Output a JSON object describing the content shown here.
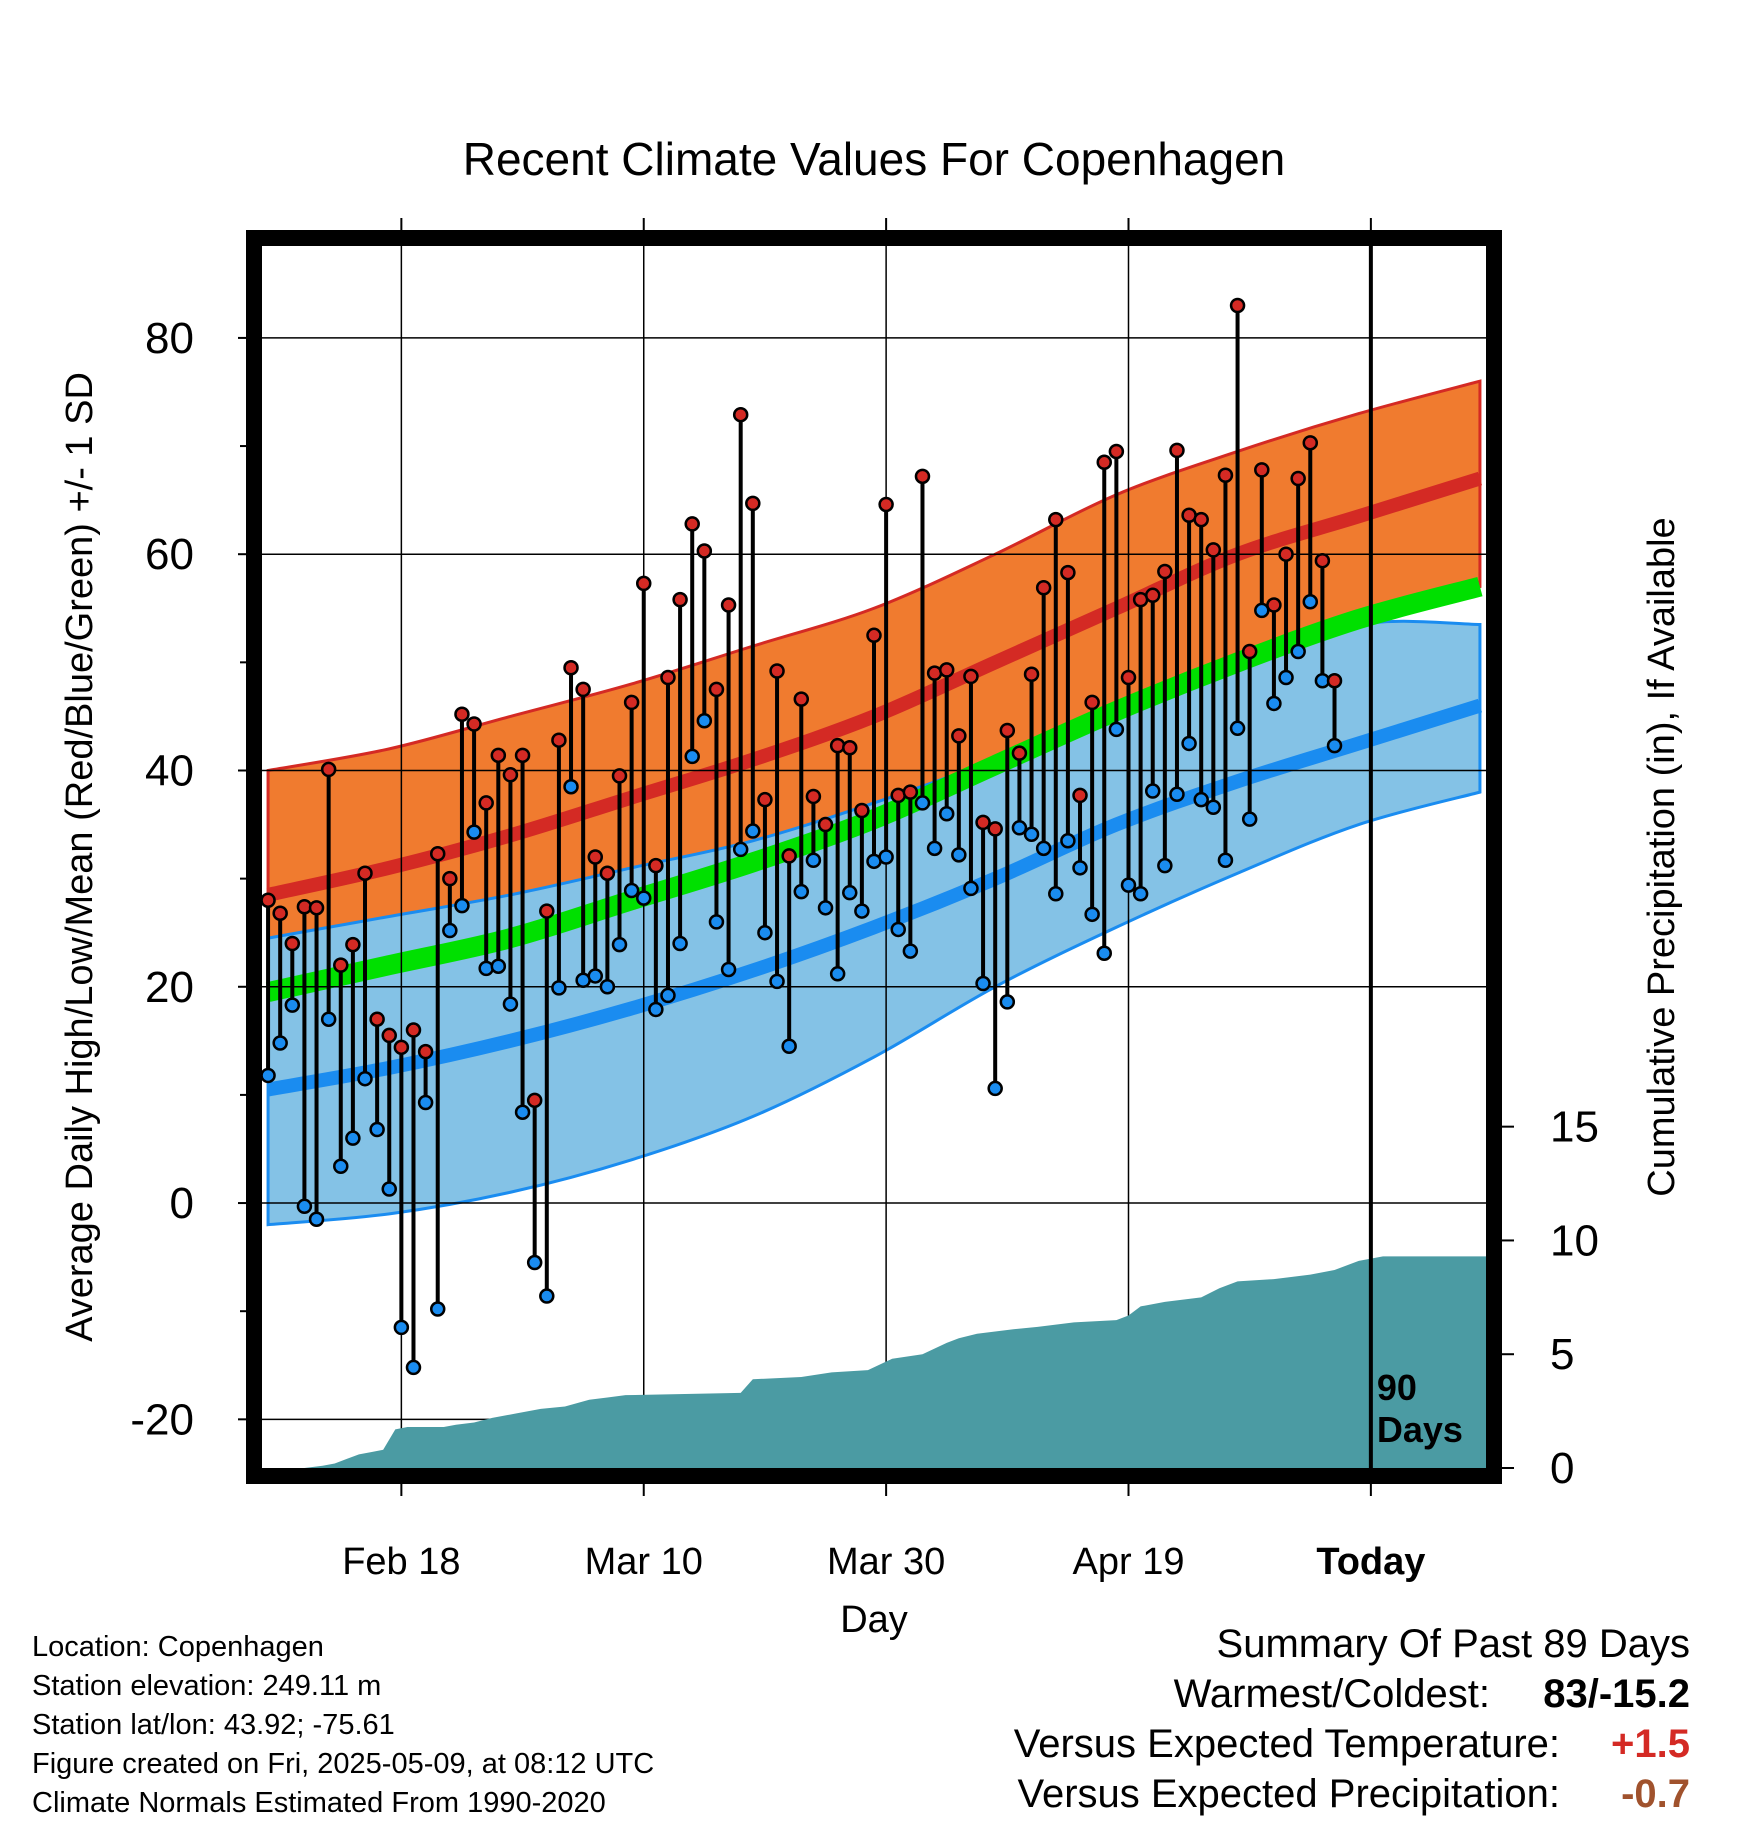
{
  "chart_data": {
    "type": "line",
    "title": "Recent Climate Values For Copenhagen",
    "xlabel": "Day",
    "ylabel": "Average Daily High/Low/Mean (Red/Blue/Green) +/- 1 SD",
    "y2label": "Cumulative Precipitation (in), If Available",
    "x_tick_labels": [
      "Feb 18",
      "Mar 10",
      "Mar 30",
      "Apr 19",
      "Today"
    ],
    "x_tick_days": [
      19,
      39,
      59,
      79,
      99
    ],
    "y_ticks": [
      80,
      60,
      40,
      20,
      0,
      -20
    ],
    "y_tick_labels": [
      "80",
      "60",
      "40",
      "20",
      "0",
      "-20"
    ],
    "ylim": [
      -24.5,
      88.5
    ],
    "y2_ticks": [
      15,
      10,
      5,
      0
    ],
    "y2_tick_labels": [
      "15",
      "10",
      "5",
      "0"
    ],
    "y2lim": [
      0,
      53.7
    ],
    "xlim": [
      7.5,
      108.5
    ],
    "today_day": 99,
    "days_label": [
      "90",
      "Days"
    ],
    "grid": true,
    "colors": {
      "high_band": "#f07b2f",
      "high_band_edge": "#d42a24",
      "mean_high": "#d42a24",
      "low_band": "#84c2e6",
      "low_band_edge": "#1a8cf0",
      "mean_low": "#1a8cf0",
      "mean_temp": "#00e000",
      "overlap": "#8f1212",
      "precip": "#4b9ba3",
      "high_marker": "#d42a24",
      "low_marker": "#1a8cf0"
    },
    "normals": {
      "days": [
        8,
        18,
        28,
        38,
        48,
        58,
        68,
        78,
        88,
        98,
        108
      ],
      "high_mean": [
        28.5,
        31.0,
        34.0,
        37.5,
        41.0,
        45.0,
        50.0,
        55.0,
        60.0,
        63.5,
        67.0
      ],
      "high_upper": [
        40.0,
        42.0,
        45.0,
        48.0,
        51.5,
        55.0,
        60.0,
        65.5,
        69.5,
        73.0,
        76.0
      ],
      "high_lower": [
        18.5,
        20.5,
        23.0,
        26.5,
        30.5,
        34.5,
        39.5,
        44.5,
        49.5,
        53.5,
        57.0
      ],
      "low_mean": [
        10.5,
        12.5,
        15.0,
        18.0,
        21.5,
        25.5,
        30.0,
        35.0,
        39.0,
        42.5,
        46.0
      ],
      "low_upper": [
        24.5,
        26.5,
        28.5,
        31.0,
        33.5,
        37.0,
        41.0,
        45.5,
        49.5,
        53.5,
        53.5
      ],
      "low_lower": [
        -2.0,
        -1.0,
        1.0,
        4.0,
        8.0,
        13.5,
        20.0,
        25.5,
        30.5,
        35.0,
        38.0
      ],
      "mean": [
        19.5,
        22.0,
        24.5,
        28.0,
        31.5,
        35.5,
        40.5,
        45.5,
        50.0,
        54.0,
        57.0
      ]
    },
    "daily": {
      "start_day": 8,
      "high": [
        28,
        26.8,
        24,
        27.4,
        27.3,
        40.1,
        22,
        23.9,
        30.5,
        17,
        15.5,
        14.4,
        16,
        14,
        32.3,
        30,
        45.2,
        44.3,
        37,
        41.4,
        39.6,
        41.4,
        9.5,
        27,
        42.8,
        49.5,
        47.5,
        32,
        30.5,
        39.5,
        46.3,
        57.3,
        31.2,
        48.6,
        55.8,
        62.8,
        60.3,
        47.5,
        55.3,
        72.9,
        64.7,
        37.3,
        49.2,
        32.1,
        46.6,
        37.6,
        35,
        42.3,
        42.1,
        36.3,
        52.5,
        64.6,
        37.7,
        38,
        67.2,
        49,
        49.3,
        43.2,
        48.7,
        35.2,
        34.6,
        43.7,
        41.6,
        48.9,
        56.9,
        63.2,
        58.3,
        37.7,
        46.3,
        68.5,
        69.5,
        48.6,
        55.8,
        56.2,
        58.4,
        69.6,
        63.6,
        63.2,
        60.4,
        67.3,
        83,
        51,
        67.8,
        55.3,
        60,
        67,
        70.3,
        59.4,
        48.3
      ],
      "low": [
        11.8,
        14.8,
        18.3,
        -0.3,
        -1.5,
        17,
        3.4,
        6,
        11.5,
        6.8,
        1.3,
        -11.5,
        -15.2,
        9.3,
        -9.8,
        25.2,
        27.5,
        34.3,
        21.7,
        21.9,
        18.4,
        8.4,
        -5.5,
        -8.6,
        19.9,
        38.5,
        20.6,
        21,
        20,
        23.9,
        28.9,
        28.2,
        17.9,
        19.2,
        24,
        41.3,
        44.6,
        26,
        21.6,
        32.7,
        34.4,
        25,
        20.5,
        14.5,
        28.8,
        31.7,
        27.3,
        21.2,
        28.7,
        27,
        31.6,
        32,
        25.3,
        23.3,
        37,
        32.8,
        36,
        32.2,
        29.1,
        20.3,
        10.6,
        18.6,
        34.7,
        34.1,
        32.8,
        28.6,
        33.5,
        31,
        26.7,
        23.1,
        43.8,
        29.4,
        28.6,
        38.1,
        31.2,
        37.8,
        42.5,
        37.3,
        36.6,
        31.7,
        43.9,
        35.5,
        54.8,
        46.2,
        48.6,
        51,
        55.6,
        48.3,
        42.3
      ]
    },
    "precip": {
      "points": [
        [
          7.5,
          0
        ],
        [
          11,
          0
        ],
        [
          12.5,
          0.1
        ],
        [
          13.5,
          0.2
        ],
        [
          14.5,
          0.4
        ],
        [
          15.5,
          0.6
        ],
        [
          16.5,
          0.7
        ],
        [
          17.5,
          0.8
        ],
        [
          18.5,
          1.7
        ],
        [
          19.5,
          1.8
        ],
        [
          22.5,
          1.8
        ],
        [
          23.5,
          1.9
        ],
        [
          25,
          2
        ],
        [
          26.5,
          2.2
        ],
        [
          28.5,
          2.4
        ],
        [
          30.5,
          2.6
        ],
        [
          32.5,
          2.7
        ],
        [
          34.5,
          3
        ],
        [
          36,
          3.1
        ],
        [
          37.5,
          3.2
        ],
        [
          47,
          3.3
        ],
        [
          48,
          3.9
        ],
        [
          52,
          4
        ],
        [
          54.5,
          4.2
        ],
        [
          57.5,
          4.3
        ],
        [
          59.5,
          4.8
        ],
        [
          62,
          5
        ],
        [
          64,
          5.5
        ],
        [
          65,
          5.7
        ],
        [
          66.5,
          5.9
        ],
        [
          69.5,
          6.1
        ],
        [
          71.5,
          6.2
        ],
        [
          73,
          6.3
        ],
        [
          74.5,
          6.4
        ],
        [
          78,
          6.5
        ],
        [
          79,
          6.7
        ],
        [
          80,
          7.1
        ],
        [
          82,
          7.3
        ],
        [
          85,
          7.5
        ],
        [
          86.5,
          7.9
        ],
        [
          88,
          8.2
        ],
        [
          91,
          8.3
        ],
        [
          94,
          8.5
        ],
        [
          96,
          8.7
        ],
        [
          98,
          9.1
        ],
        [
          100,
          9.3
        ],
        [
          108.5,
          9.3
        ]
      ]
    }
  },
  "footer": {
    "location": "Location: Copenhagen",
    "elevation": "Station elevation: 249.11 m",
    "latlon": "Station lat/lon: 43.92; -75.61",
    "created": "Figure created on Fri, 2025-05-09, at 08:12 UTC",
    "normals": "Climate Normals Estimated From 1990-2020"
  },
  "summary": {
    "title": "Summary Of Past 89 Days",
    "warmest_label": "Warmest/Coldest:",
    "warmest_value": "83/-15.2",
    "temp_label": "Versus Expected Temperature:",
    "temp_value": "+1.5",
    "temp_color": "#d42a24",
    "precip_label": "Versus Expected Precipitation:",
    "precip_value": "-0.7",
    "precip_color": "#a0522d"
  }
}
